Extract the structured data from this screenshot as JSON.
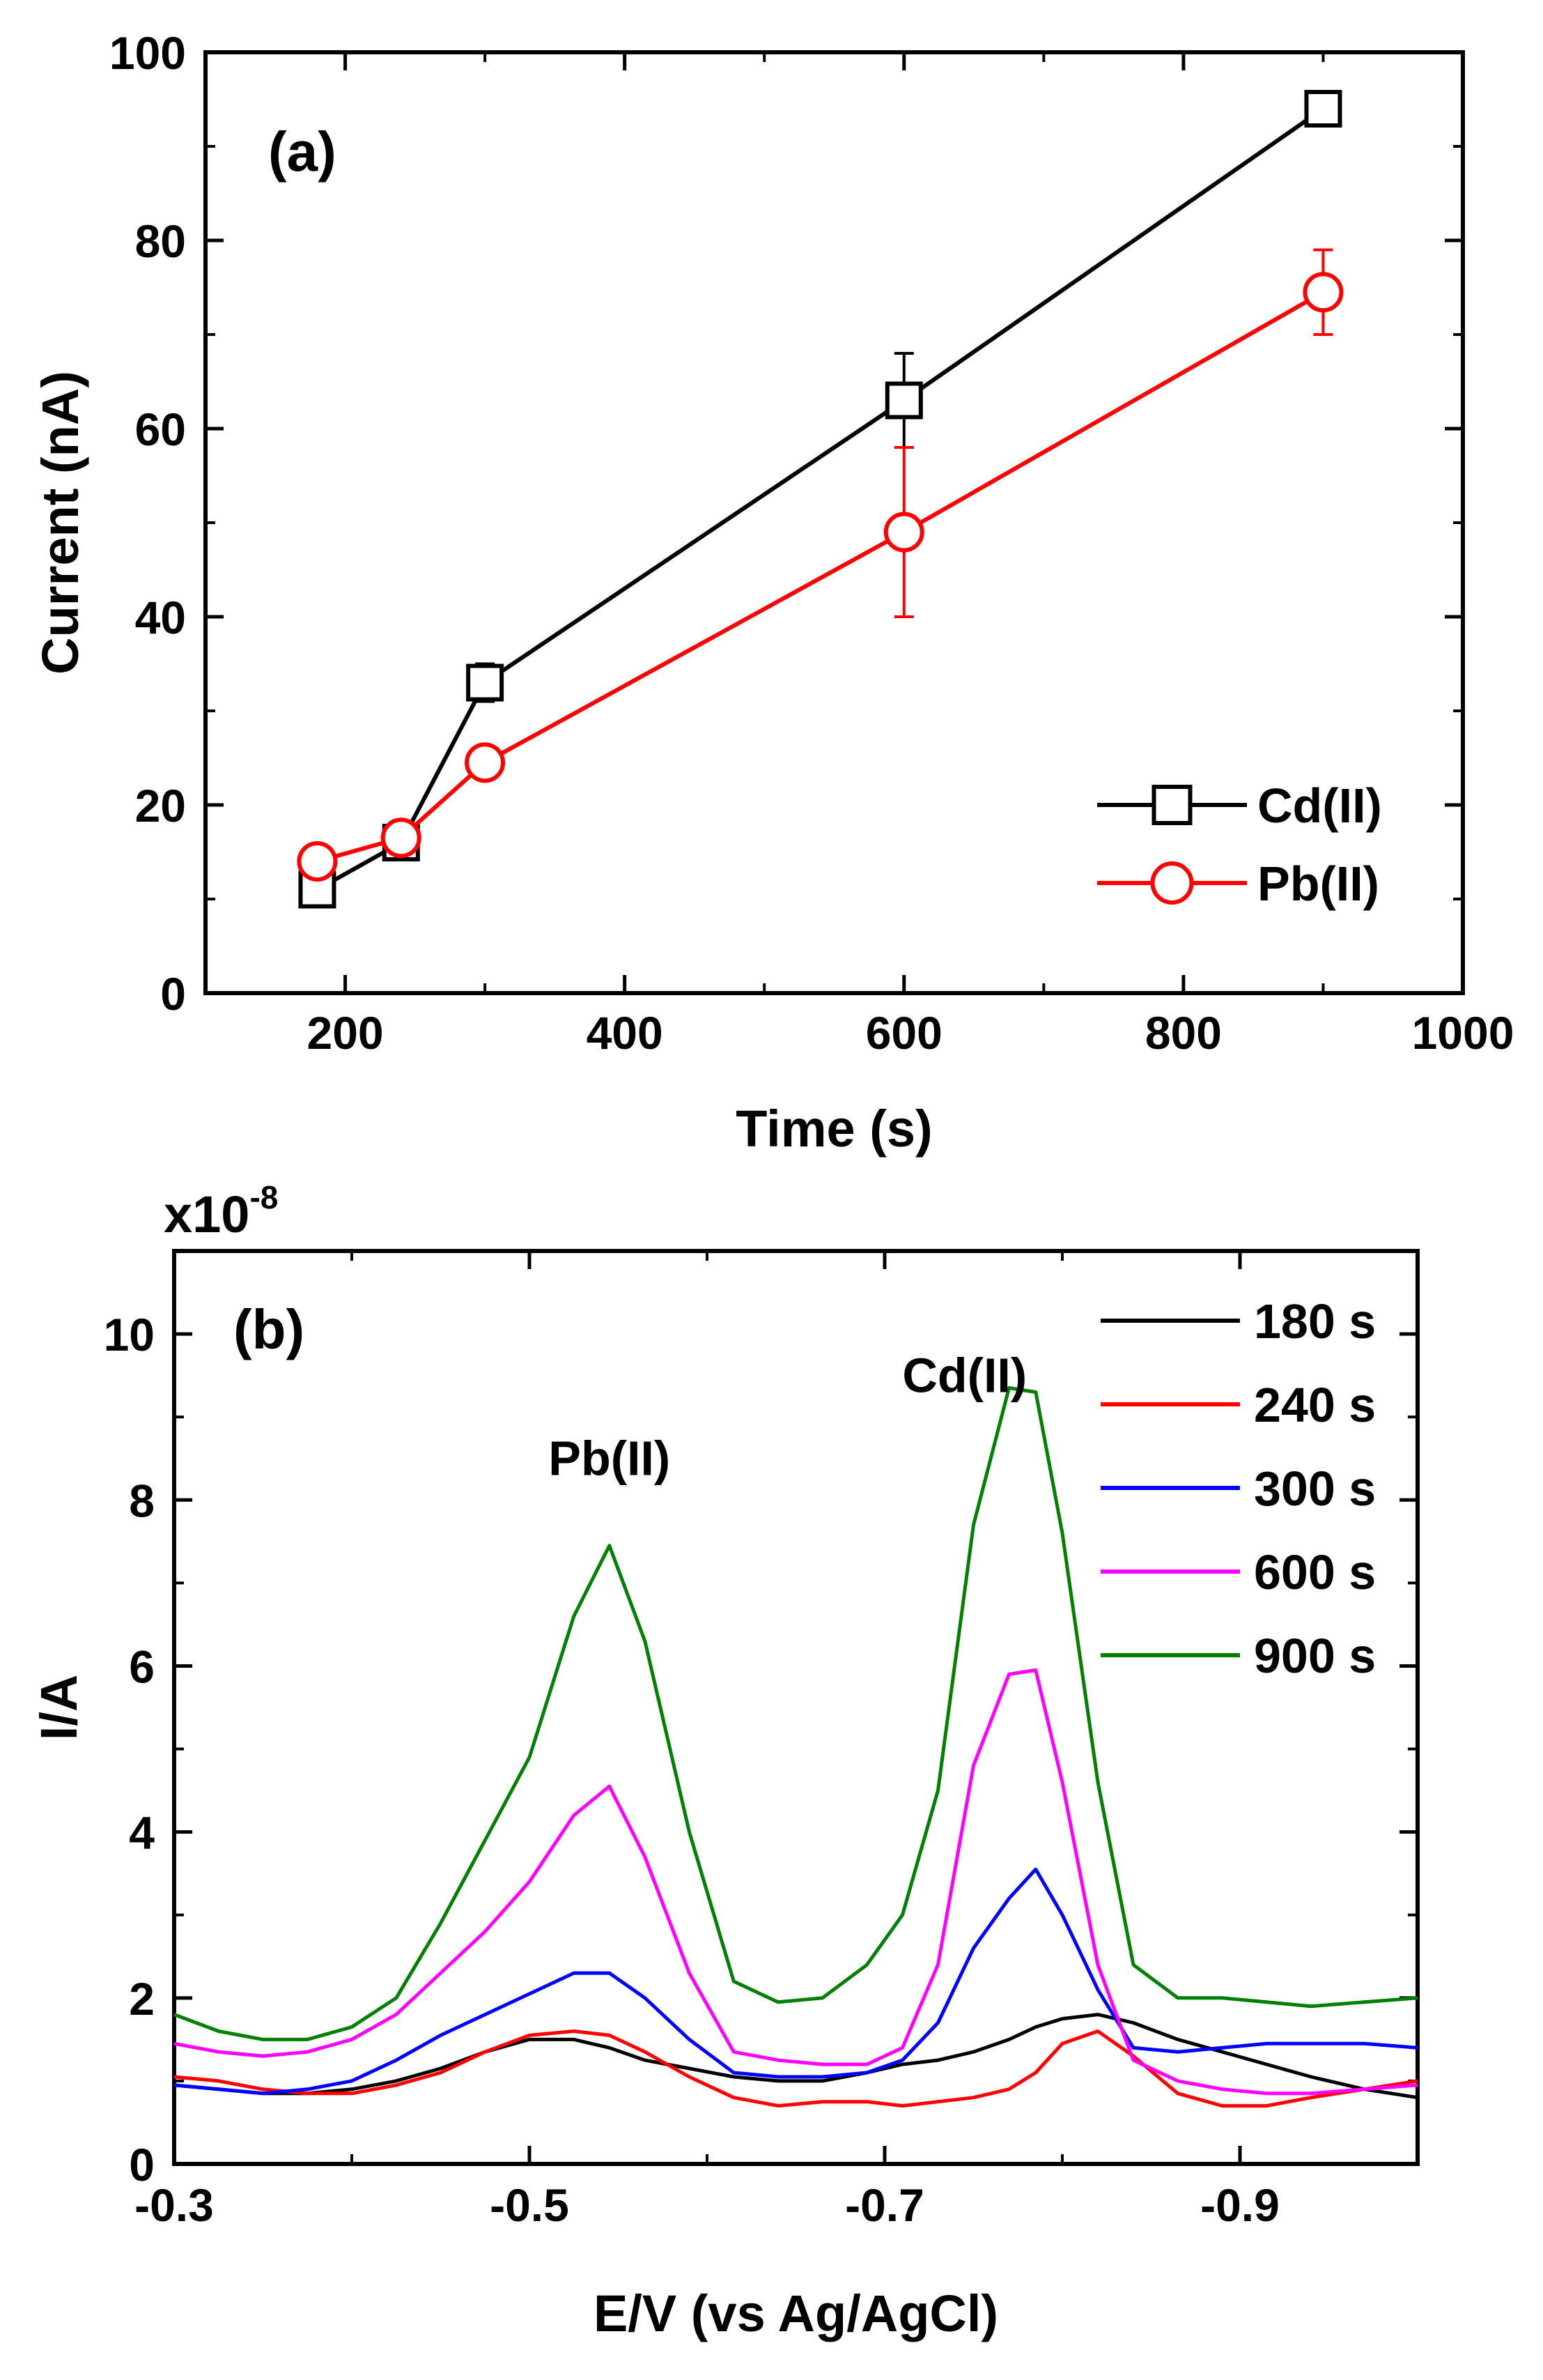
{
  "chart_data": [
    {
      "panel": "(a)",
      "type": "line",
      "title": "",
      "xlabel": "Time (s)",
      "ylabel": "Current (nA)",
      "xlim": [
        100,
        1000
      ],
      "ylim": [
        0,
        100
      ],
      "xticks": [
        200,
        400,
        600,
        800,
        1000
      ],
      "yticks": [
        0,
        20,
        40,
        60,
        80,
        100
      ],
      "legend_position": "bottom-right",
      "grid": false,
      "series": [
        {
          "name": "Cd(II)",
          "color": "#000000",
          "marker": "square",
          "x": [
            180,
            240,
            300,
            600,
            900
          ],
          "y": [
            11,
            16,
            33,
            63,
            94
          ],
          "err": [
            1.5,
            1.5,
            2,
            5,
            0.5
          ]
        },
        {
          "name": "Pb(II)",
          "color": "#ff0000",
          "marker": "circle",
          "x": [
            180,
            240,
            300,
            600,
            900
          ],
          "y": [
            14,
            16.5,
            24.5,
            49,
            74.5
          ],
          "err": [
            0.5,
            1,
            1.5,
            9,
            4.5
          ]
        }
      ]
    },
    {
      "panel": "(b)",
      "type": "line",
      "title": "",
      "xlabel": "E/V (vs Ag/AgCl)",
      "ylabel": "I/A",
      "y_multiplier": "x10",
      "y_exponent": "-8",
      "xlim": [
        -0.3,
        -1.0
      ],
      "ylim": [
        0,
        11
      ],
      "xticks": [
        -0.3,
        -0.5,
        -0.7,
        -0.9
      ],
      "xtick_labels": [
        "-0.3",
        "-0.5",
        "-0.7",
        "-0.9"
      ],
      "yticks": [
        0,
        2,
        4,
        6,
        8,
        10
      ],
      "legend_position": "top-right",
      "grid": false,
      "peak_labels": [
        {
          "text": "Pb(II)",
          "x": -0.545,
          "y": 8.3
        },
        {
          "text": "Cd(II)",
          "x": -0.745,
          "y": 9.3
        }
      ],
      "x": [
        -0.3,
        -0.325,
        -0.35,
        -0.375,
        -0.4,
        -0.425,
        -0.45,
        -0.475,
        -0.5,
        -0.525,
        -0.545,
        -0.565,
        -0.59,
        -0.615,
        -0.64,
        -0.665,
        -0.69,
        -0.71,
        -0.73,
        -0.75,
        -0.77,
        -0.785,
        -0.8,
        -0.82,
        -0.84,
        -0.865,
        -0.89,
        -0.915,
        -0.94,
        -0.97,
        -1.0
      ],
      "series": [
        {
          "name": "180 s",
          "color": "#000000",
          "values": [
            0.95,
            0.9,
            0.85,
            0.85,
            0.9,
            1.0,
            1.15,
            1.35,
            1.5,
            1.5,
            1.4,
            1.25,
            1.15,
            1.05,
            1.0,
            1.0,
            1.1,
            1.2,
            1.25,
            1.35,
            1.5,
            1.65,
            1.75,
            1.8,
            1.7,
            1.5,
            1.35,
            1.2,
            1.05,
            0.9,
            0.8
          ]
        },
        {
          "name": "240 s",
          "color": "#ff0000",
          "values": [
            1.05,
            1.0,
            0.9,
            0.85,
            0.85,
            0.95,
            1.1,
            1.35,
            1.55,
            1.6,
            1.55,
            1.35,
            1.05,
            0.8,
            0.7,
            0.75,
            0.75,
            0.7,
            0.75,
            0.8,
            0.9,
            1.1,
            1.45,
            1.6,
            1.3,
            0.85,
            0.7,
            0.7,
            0.8,
            0.9,
            1.0
          ]
        },
        {
          "name": "300 s",
          "color": "#0000ff",
          "values": [
            0.95,
            0.9,
            0.85,
            0.9,
            1.0,
            1.25,
            1.55,
            1.8,
            2.05,
            2.3,
            2.3,
            2.0,
            1.5,
            1.1,
            1.05,
            1.05,
            1.1,
            1.25,
            1.7,
            2.6,
            3.2,
            3.55,
            3.0,
            2.1,
            1.4,
            1.35,
            1.4,
            1.45,
            1.45,
            1.45,
            1.4
          ]
        },
        {
          "name": "600 s",
          "color": "#ff00ff",
          "values": [
            1.45,
            1.35,
            1.3,
            1.35,
            1.5,
            1.8,
            2.3,
            2.8,
            3.4,
            4.2,
            4.55,
            3.7,
            2.3,
            1.35,
            1.25,
            1.2,
            1.2,
            1.4,
            2.4,
            4.8,
            5.9,
            5.95,
            4.6,
            2.4,
            1.25,
            1.0,
            0.9,
            0.85,
            0.85,
            0.9,
            0.95
          ]
        },
        {
          "name": "900 s",
          "color": "#007f00",
          "values": [
            1.8,
            1.6,
            1.5,
            1.5,
            1.65,
            2.0,
            2.9,
            3.9,
            4.9,
            6.6,
            7.45,
            6.3,
            4.0,
            2.2,
            1.95,
            2.0,
            2.4,
            3.0,
            4.5,
            7.7,
            9.35,
            9.3,
            7.6,
            4.6,
            2.4,
            2.0,
            2.0,
            1.95,
            1.9,
            1.95,
            2.0
          ]
        }
      ]
    }
  ]
}
